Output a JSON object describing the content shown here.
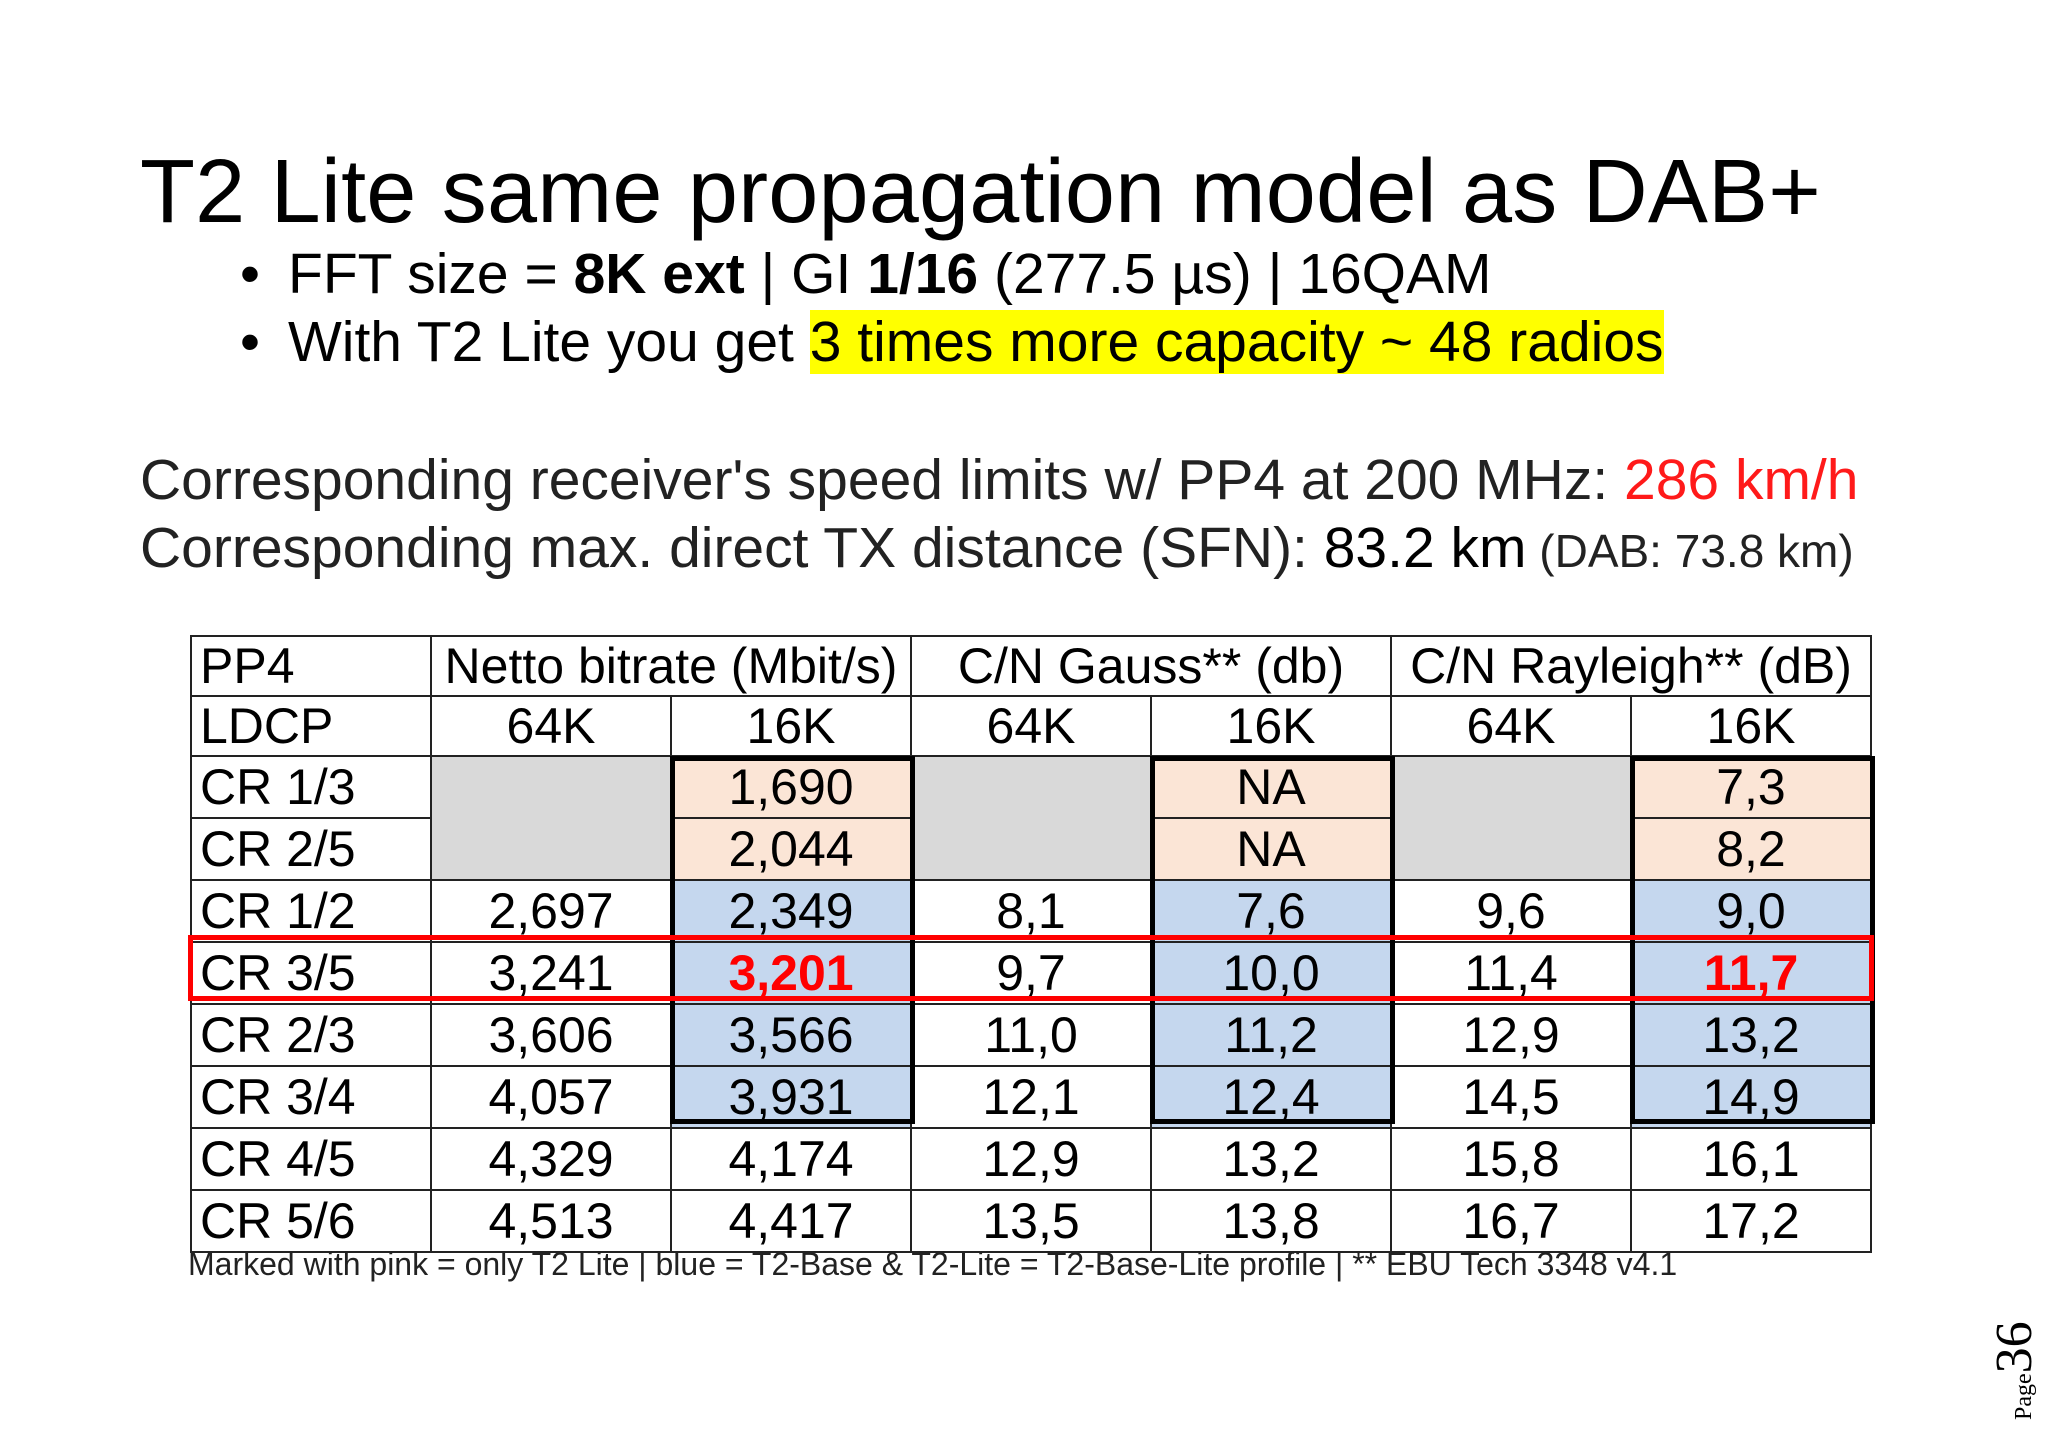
{
  "title": "T2 Lite same propagation model as DAB+",
  "bullets": {
    "b1": {
      "p1": "FFT size = ",
      "p2": "8K ext",
      "p3": " | GI ",
      "p4": "1/16",
      "p5": " (277.5 µs) | 16QAM"
    },
    "b2": {
      "p1": "With T2 Lite you get ",
      "highlight": "3 times more capacity ~ 48 radios"
    }
  },
  "info": {
    "speed_label": "Corresponding receiver's speed limits w/ PP4 at 200 MHz: ",
    "speed_value": "286 km/h",
    "dist_label": "Corresponding max. direct TX distance (SFN): ",
    "dist_value": "83.2 km",
    "dist_note": " (DAB: 73.8 km)"
  },
  "table": {
    "header1": [
      "PP4",
      "Netto bitrate (Mbit/s)",
      "C/N Gauss** (db)",
      "C/N Rayleigh** (dB)"
    ],
    "header2": [
      "LDCP",
      "64K",
      "16K",
      "64K",
      "16K",
      "64K",
      "16K"
    ],
    "rows": [
      [
        "CR 1/3",
        "",
        "1,690",
        "",
        "NA",
        "",
        "7,3"
      ],
      [
        "CR 2/5",
        "",
        "2,044",
        "",
        "NA",
        "",
        "8,2"
      ],
      [
        "CR 1/2",
        "2,697",
        "2,349",
        "8,1",
        "7,6",
        "9,6",
        "9,0"
      ],
      [
        "CR 3/5",
        "3,241",
        "3,201",
        "9,7",
        "10,0",
        "11,4",
        "11,7"
      ],
      [
        "CR 2/3",
        "3,606",
        "3,566",
        "11,0",
        "11,2",
        "12,9",
        "13,2"
      ],
      [
        "CR 3/4",
        "4,057",
        "3,931",
        "12,1",
        "12,4",
        "14,5",
        "14,9"
      ],
      [
        "CR 4/5",
        "4,329",
        "4,174",
        "12,9",
        "13,2",
        "15,8",
        "16,1"
      ],
      [
        "CR 5/6",
        "4,513",
        "4,417",
        "13,5",
        "13,8",
        "16,7",
        "17,2"
      ]
    ]
  },
  "footnote": "Marked with pink = only T2 Lite | blue = T2-Base & T2-Lite = T2-Base-Lite profile | ** EBU Tech 3348 v4.1",
  "page": {
    "label": "Page",
    "number": "36"
  },
  "colors": {
    "highlight": "#ffff00",
    "accent_red": "#ff0000",
    "pink_cell": "#fbe5d6",
    "blue_cell": "#c5d7ee",
    "gray_cell": "#d9d9d9"
  }
}
